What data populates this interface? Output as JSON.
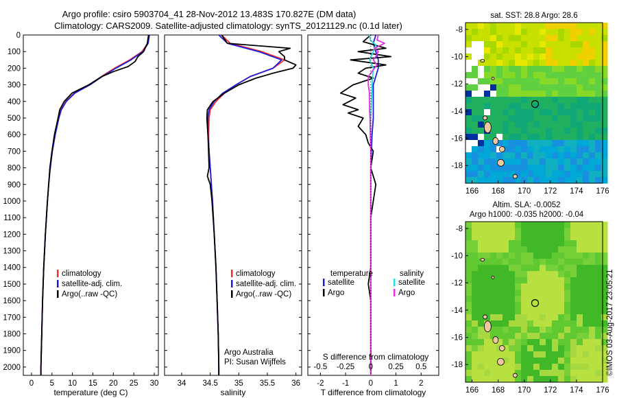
{
  "header": {
    "title_line1": "Argo profile: csiro 5903704_41 28-Nov-2012 13.483S 170.827E (DM data)",
    "title_line2": "Climatology: CARS2009. Satellite-adjusted climatology: synTS_20121129.nc (0.1d later)"
  },
  "colors": {
    "climatology": "#ff2a2a",
    "satellite": "#1c1cd8",
    "argo": "#000000",
    "sal_satellite": "#22e0e0",
    "sal_argo": "#e030e0"
  },
  "depth_ticks": [
    "0",
    "100",
    "200",
    "300",
    "400",
    "500",
    "600",
    "700",
    "800",
    "900",
    "1000",
    "1100",
    "1200",
    "1300",
    "1400",
    "1500",
    "1600",
    "1700",
    "1800",
    "1900",
    "2000"
  ],
  "chart_data": [
    {
      "type": "line",
      "xlabel": "temperature (deg C)",
      "ylim": [
        2050,
        0
      ],
      "xlim": [
        -2,
        31
      ],
      "xticks": [
        "0",
        "5",
        "10",
        "15",
        "20",
        "25",
        "30"
      ],
      "legend": [
        "climatology",
        "satellite-adj. clim.",
        "Argo(..raw -QC)"
      ],
      "series": [
        {
          "name": "climatology",
          "depth": [
            0,
            50,
            100,
            150,
            200,
            250,
            300,
            350,
            400,
            450,
            500,
            600,
            700,
            800,
            900,
            1000,
            1200,
            1400,
            1600,
            1800,
            2000,
            2050
          ],
          "values": [
            28.6,
            28.4,
            27.0,
            24.0,
            20.3,
            17.1,
            14.2,
            10.5,
            8.4,
            7.2,
            6.6,
            5.7,
            5.0,
            4.5,
            4.2,
            3.9,
            3.4,
            3.0,
            2.7,
            2.5,
            2.3,
            2.3
          ]
        },
        {
          "name": "satellite-adj. clim.",
          "depth": [
            0,
            50,
            100,
            150,
            200,
            250,
            300,
            350,
            400,
            450,
            500,
            600,
            700,
            800,
            900,
            1000,
            1200,
            1400,
            1600,
            1800,
            2000,
            2050
          ],
          "values": [
            28.8,
            28.5,
            27.2,
            24.3,
            20.6,
            17.3,
            14.3,
            10.6,
            8.5,
            7.3,
            6.7,
            5.8,
            5.1,
            4.6,
            4.2,
            3.9,
            3.4,
            3.0,
            2.7,
            2.5,
            2.3,
            2.3
          ]
        },
        {
          "name": "Argo(..raw -QC)",
          "depth": [
            0,
            50,
            100,
            130,
            160,
            190,
            220,
            250,
            300,
            350,
            400,
            450,
            500,
            600,
            700,
            800,
            900,
            1000,
            1200,
            1400,
            1600,
            1800,
            2000,
            2050
          ],
          "values": [
            28.6,
            28.3,
            27.4,
            26.0,
            25.3,
            23.6,
            20.1,
            17.2,
            14.0,
            9.9,
            8.0,
            6.9,
            6.5,
            5.6,
            5.0,
            4.5,
            4.2,
            3.9,
            3.4,
            3.0,
            2.7,
            2.5,
            2.3,
            2.3
          ]
        }
      ]
    },
    {
      "type": "line",
      "xlabel": "salinity",
      "ylim": [
        2050,
        0
      ],
      "xlim": [
        33.7,
        36.1
      ],
      "xticks": [
        "34",
        "34.5",
        "35",
        "35.5",
        "36"
      ],
      "legend": [
        "climatology",
        "satellite-adj. clim.",
        "Argo(..raw -QC)"
      ],
      "note_lines": [
        "Argo Australia",
        "PI: Susan Wijffels"
      ],
      "series": [
        {
          "name": "climatology",
          "depth": [
            0,
            50,
            100,
            150,
            200,
            250,
            300,
            350,
            400,
            450,
            500,
            600,
            700,
            800,
            900,
            1000,
            1200,
            1400,
            1600,
            1800,
            2000,
            2050
          ],
          "values": [
            34.7,
            34.85,
            35.4,
            35.8,
            35.6,
            35.2,
            34.95,
            34.75,
            34.6,
            34.5,
            34.48,
            34.47,
            34.48,
            34.5,
            34.52,
            34.54,
            34.57,
            34.6,
            34.62,
            34.64,
            34.65,
            34.65
          ]
        },
        {
          "name": "satellite-adj. clim.",
          "depth": [
            0,
            50,
            100,
            150,
            200,
            250,
            300,
            350,
            400,
            450,
            500,
            600,
            700,
            800,
            900,
            1000,
            1200,
            1400,
            1600,
            1800,
            2000,
            2050
          ],
          "values": [
            34.65,
            34.8,
            35.35,
            35.75,
            35.6,
            35.2,
            34.95,
            34.72,
            34.57,
            34.48,
            34.46,
            34.46,
            34.48,
            34.5,
            34.52,
            34.54,
            34.57,
            34.6,
            34.62,
            34.64,
            34.65,
            34.65
          ]
        },
        {
          "name": "Argo(..raw -QC)",
          "depth": [
            0,
            50,
            80,
            100,
            130,
            150,
            180,
            200,
            230,
            260,
            300,
            350,
            400,
            450,
            500,
            600,
            700,
            800,
            850,
            900,
            1000,
            1200,
            1400,
            1600,
            1800,
            2000,
            2050
          ],
          "values": [
            34.7,
            34.8,
            35.9,
            35.7,
            35.8,
            35.8,
            36.0,
            35.95,
            35.6,
            35.3,
            35.0,
            34.75,
            34.55,
            34.45,
            34.44,
            34.46,
            34.47,
            34.48,
            34.45,
            34.5,
            34.53,
            34.57,
            34.6,
            34.62,
            34.64,
            34.65,
            34.65
          ]
        }
      ]
    },
    {
      "type": "line",
      "xlabel": "T difference from climatology",
      "x2label": "S difference from climatology",
      "ylim": [
        2050,
        0
      ],
      "xlim": [
        -2.5,
        2.7
      ],
      "xticks": [
        "-2",
        "-1",
        "0",
        "1",
        "2"
      ],
      "x2ticks": [
        "-0.5",
        "-0.25",
        "0",
        "0.25",
        "0.5"
      ],
      "legend_temperature": [
        "temperature",
        "satellite",
        "Argo"
      ],
      "legend_salinity": [
        "salinity",
        "satellite",
        "Argo"
      ],
      "series": [
        {
          "name": "temperature satellite",
          "depth": [
            0,
            50,
            100,
            150,
            200,
            300,
            400,
            500,
            600,
            800,
            1000,
            1500,
            2000,
            2050
          ],
          "values": [
            0.2,
            0.1,
            0.2,
            0.3,
            0.3,
            0.1,
            0.1,
            0.1,
            0.05,
            0.0,
            0.0,
            0.0,
            0.0,
            0.0
          ]
        },
        {
          "name": "temperature Argo",
          "depth": [
            0,
            40,
            80,
            100,
            130,
            150,
            180,
            200,
            230,
            260,
            300,
            350,
            380,
            420,
            450,
            470,
            500,
            550,
            600,
            650,
            700,
            800,
            900,
            1000,
            1100,
            1200,
            1400,
            1500,
            1600,
            2000,
            2050
          ],
          "values": [
            0.0,
            -0.3,
            0.6,
            -0.5,
            0.8,
            -0.8,
            0.6,
            -0.2,
            -0.5,
            0.1,
            -0.7,
            -1.2,
            -0.6,
            -1.1,
            -0.5,
            -0.9,
            -0.3,
            -0.5,
            -0.2,
            -0.1,
            0.1,
            0.0,
            0.2,
            0.1,
            0.0,
            0.0,
            0.0,
            -0.1,
            0.0,
            0.0,
            0.0
          ]
        },
        {
          "name": "salinity satellite",
          "depth": [
            0,
            30,
            60,
            100,
            150,
            200,
            300,
            500,
            800,
            1200,
            2000,
            2050
          ],
          "values": [
            -0.05,
            -0.02,
            0.2,
            0.1,
            -0.05,
            0.1,
            0.05,
            0.0,
            0.0,
            0.0,
            0.0,
            0.0
          ]
        },
        {
          "name": "salinity Argo",
          "depth": [
            0,
            30,
            50,
            80,
            100,
            130,
            150,
            180,
            200,
            250,
            300,
            350,
            400,
            450,
            500,
            600,
            700,
            800,
            900,
            1000,
            1200,
            1500,
            2000,
            2050
          ],
          "values": [
            0.3,
            0.25,
            0.55,
            0.15,
            0.3,
            0.2,
            0.1,
            0.25,
            0.15,
            -0.1,
            -0.1,
            -0.05,
            -0.05,
            -0.05,
            -0.03,
            -0.02,
            0.0,
            0.0,
            0.0,
            0.0,
            0.0,
            0.0,
            0.0,
            0.0
          ]
        }
      ]
    },
    {
      "type": "heatmap",
      "title": "sat. SST: 28.8 Argo: 28.6",
      "xticks": [
        "166",
        "168",
        "170",
        "172",
        "174",
        "176"
      ],
      "yticks": [
        "-8",
        "-10",
        "-12",
        "-14",
        "-16",
        "-18"
      ],
      "xlim": [
        165.5,
        176
      ],
      "ylim": [
        -19.3,
        -7.5
      ],
      "argo_position": {
        "lon": 170.827,
        "lat": -13.483
      }
    },
    {
      "type": "heatmap",
      "title_line1": "Altim. SLA: -0.0052",
      "title_line2": "Argo h1000: -0.035 h2000: -0.04",
      "xticks": [
        "166",
        "168",
        "170",
        "172",
        "174",
        "176"
      ],
      "yticks": [
        "-8",
        "-10",
        "-12",
        "-14",
        "-16",
        "-18"
      ],
      "xlim": [
        165.5,
        176
      ],
      "ylim": [
        -19.3,
        -7.5
      ],
      "argo_position": {
        "lon": 170.827,
        "lat": -13.483
      }
    }
  ],
  "footer": {
    "credit": "©IMOS 03-Aug-2017 23:05:21"
  }
}
